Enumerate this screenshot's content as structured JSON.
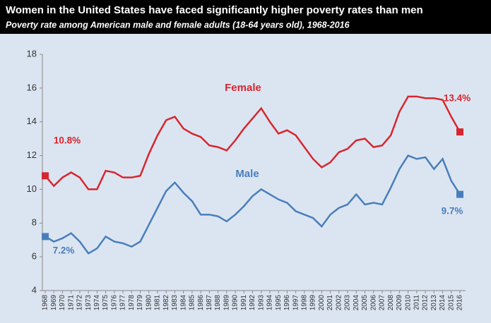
{
  "chart_data": {
    "type": "line",
    "title": "Women in the United States have faced significantly higher poverty rates than men",
    "subtitle": "Poverty rate among American male and female adults (18-64 years old), 1968-2016",
    "categories": [
      "1968",
      "1969",
      "1970",
      "1971",
      "1972",
      "1973",
      "1974",
      "1975",
      "1976",
      "1977",
      "1978",
      "1979",
      "1980",
      "1981",
      "1982",
      "1983",
      "1984",
      "1985",
      "1986",
      "1987",
      "1988",
      "1989",
      "1990",
      "1991",
      "1992",
      "1993",
      "1994",
      "1995",
      "1996",
      "1997",
      "1998",
      "1999",
      "2000",
      "2001",
      "2002",
      "2003",
      "2004",
      "2005",
      "2006",
      "2007",
      "2008",
      "2009",
      "2010",
      "2011",
      "2012",
      "2013",
      "2014",
      "2015",
      "2016"
    ],
    "series": [
      {
        "name": "Female",
        "color": "#d7262f",
        "values": [
          10.8,
          10.2,
          10.7,
          11.0,
          10.7,
          10.0,
          10.0,
          11.1,
          11.0,
          10.7,
          10.7,
          10.8,
          12.1,
          13.2,
          14.1,
          14.3,
          13.6,
          13.3,
          13.1,
          12.6,
          12.5,
          12.3,
          12.9,
          13.6,
          14.2,
          14.8,
          14.0,
          13.3,
          13.5,
          13.2,
          12.5,
          11.8,
          11.3,
          11.6,
          12.2,
          12.4,
          12.9,
          13.0,
          12.5,
          12.6,
          13.2,
          14.6,
          15.5,
          15.5,
          15.4,
          15.4,
          15.3,
          14.3,
          13.4
        ],
        "value_labels": [
          "10.8%",
          null,
          null,
          null,
          null,
          null,
          null,
          null,
          null,
          null,
          null,
          null,
          null,
          null,
          null,
          null,
          null,
          null,
          null,
          null,
          null,
          null,
          null,
          null,
          null,
          null,
          null,
          null,
          null,
          null,
          null,
          null,
          null,
          null,
          null,
          null,
          null,
          null,
          null,
          null,
          null,
          null,
          null,
          null,
          null,
          null,
          null,
          null,
          "13.4%"
        ]
      },
      {
        "name": "Male",
        "color": "#4a7ebb",
        "values": [
          7.2,
          6.9,
          7.1,
          7.4,
          6.9,
          6.2,
          6.5,
          7.2,
          6.9,
          6.8,
          6.6,
          6.9,
          7.9,
          8.9,
          9.9,
          10.4,
          9.8,
          9.3,
          8.5,
          8.5,
          8.4,
          8.1,
          8.5,
          9.0,
          9.6,
          10.0,
          9.7,
          9.4,
          9.2,
          8.7,
          8.5,
          8.3,
          7.8,
          8.5,
          8.9,
          9.1,
          9.7,
          9.1,
          9.2,
          9.1,
          10.1,
          11.2,
          12.0,
          11.8,
          11.9,
          11.2,
          11.8,
          10.5,
          9.7
        ],
        "value_labels": [
          "7.2%",
          null,
          null,
          null,
          null,
          null,
          null,
          null,
          null,
          null,
          null,
          null,
          null,
          null,
          null,
          null,
          null,
          null,
          null,
          null,
          null,
          null,
          null,
          null,
          null,
          null,
          null,
          null,
          null,
          null,
          null,
          null,
          null,
          null,
          null,
          null,
          null,
          null,
          null,
          null,
          null,
          null,
          null,
          null,
          null,
          null,
          null,
          null,
          "9.7%"
        ]
      }
    ],
    "ylim": [
      4,
      18
    ],
    "yticks": [
      4,
      6,
      8,
      10,
      12,
      14,
      16,
      18
    ],
    "grid": false
  }
}
